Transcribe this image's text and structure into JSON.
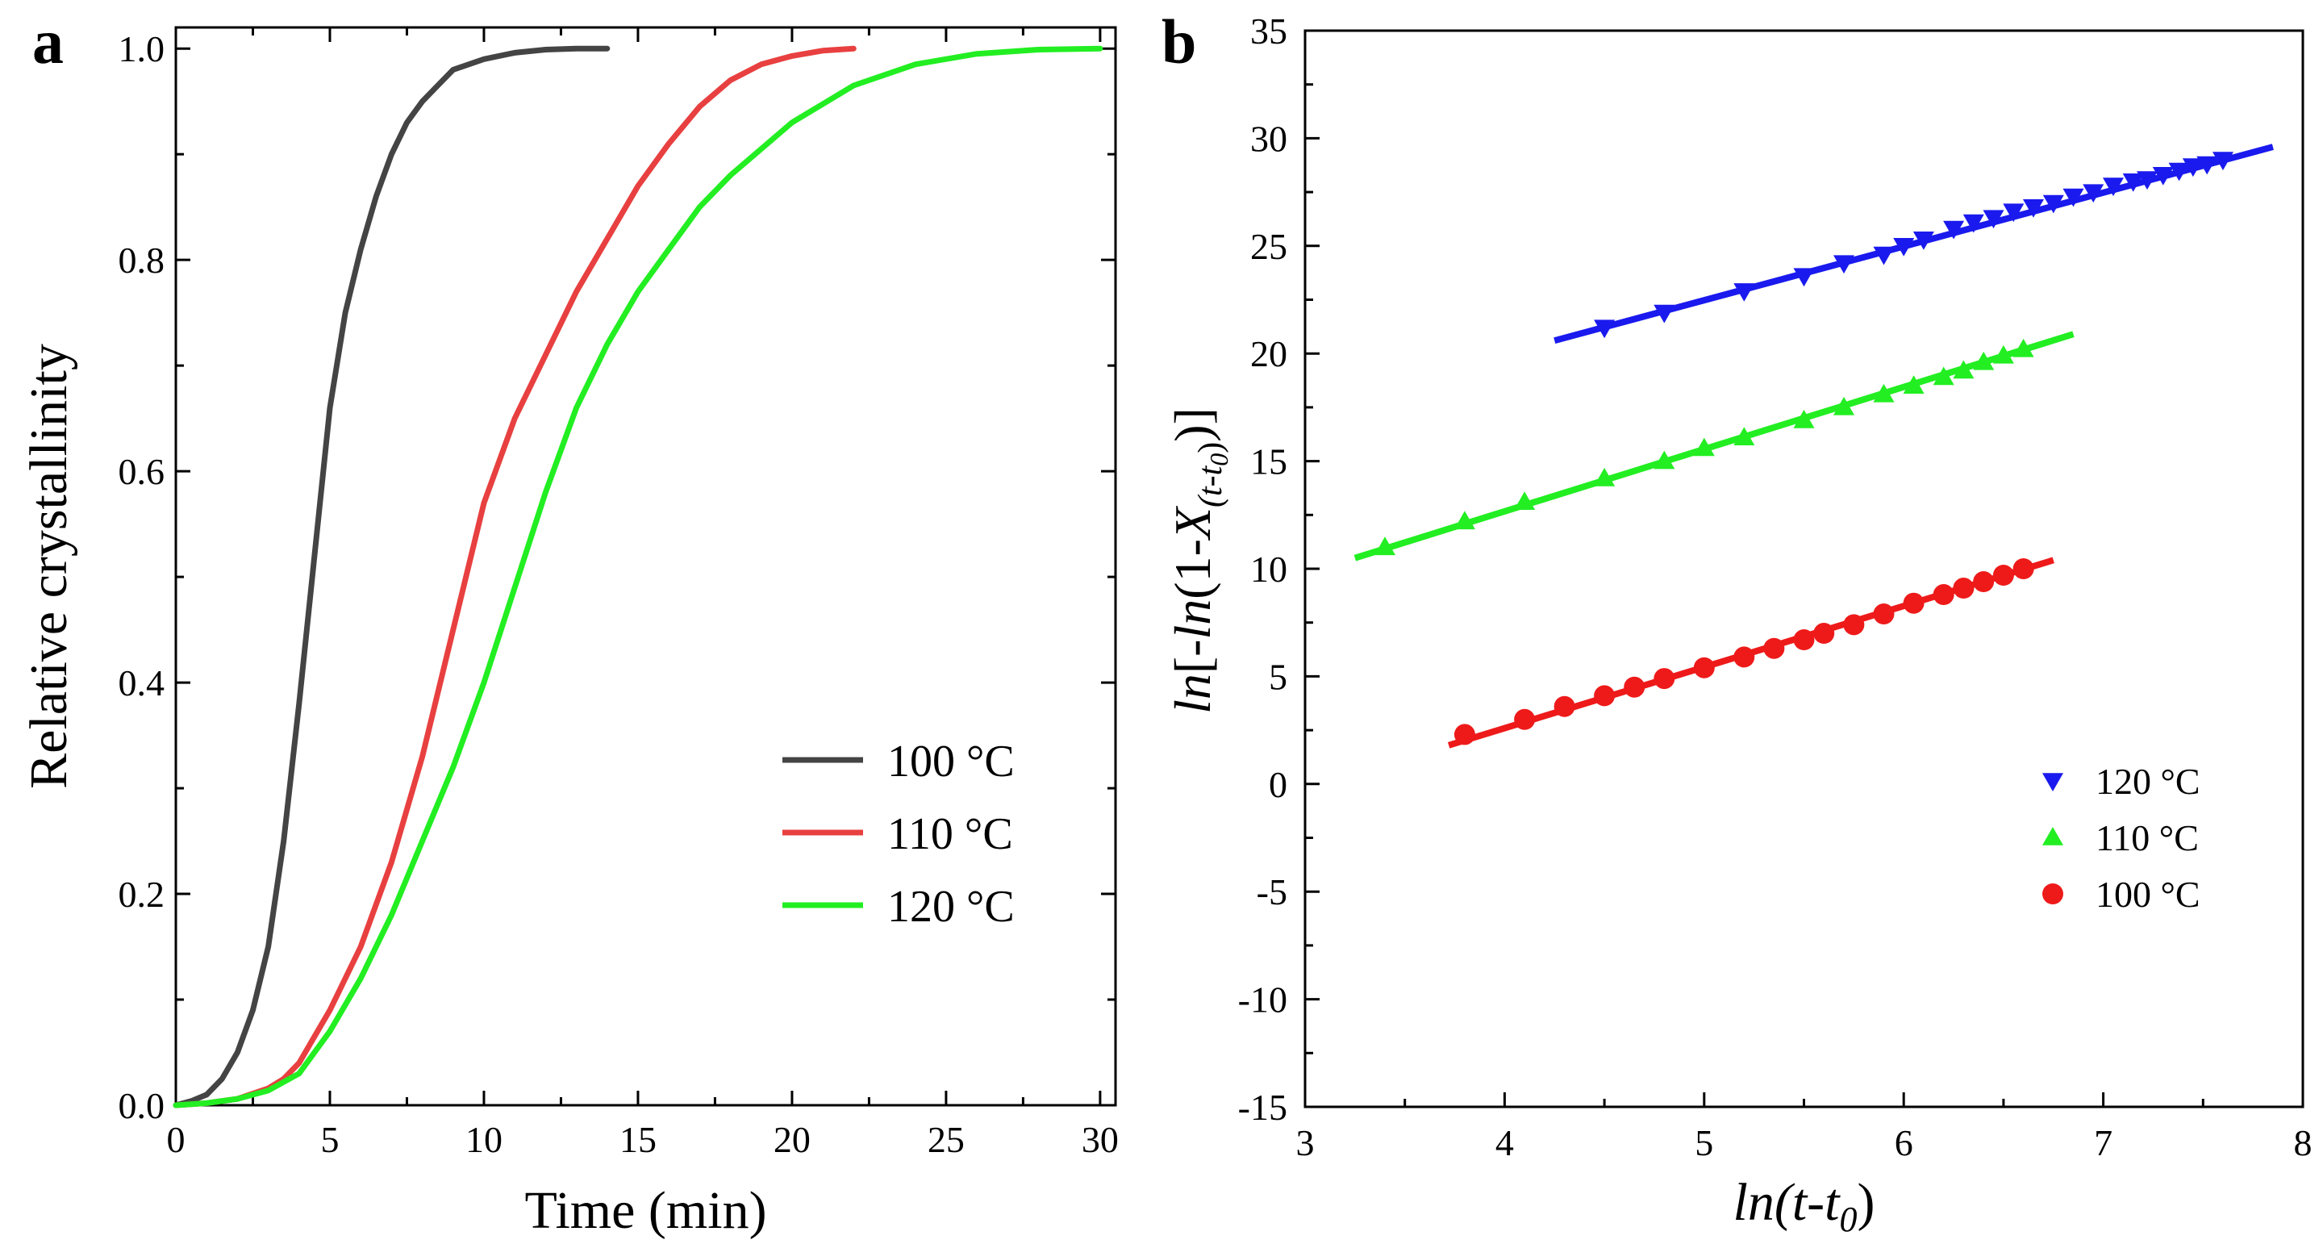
{
  "figure": {
    "panels": [
      "a",
      "b"
    ]
  },
  "chart_data": [
    {
      "panel_label": "a",
      "type": "line",
      "title": "",
      "xlabel": "Time (min)",
      "ylabel": "Relative crystallinity",
      "xlim": [
        0,
        30.5
      ],
      "ylim": [
        0,
        1.02
      ],
      "xticks": [
        0,
        5,
        10,
        15,
        20,
        25,
        30
      ],
      "yticks": [
        0.0,
        0.2,
        0.4,
        0.6,
        0.8,
        1.0
      ],
      "xtick_labels": [
        "0",
        "5",
        "10",
        "15",
        "20",
        "25",
        "30"
      ],
      "ytick_labels": [
        "0.0",
        "0.2",
        "0.4",
        "0.6",
        "0.8",
        "1.0"
      ],
      "legend_position": "lower-right",
      "grid": false,
      "series": [
        {
          "name": "100 °C",
          "color": "#444444",
          "x": [
            0,
            0.5,
            1,
            1.5,
            2,
            2.5,
            3,
            3.5,
            4,
            4.5,
            5,
            5.5,
            6,
            6.5,
            7,
            7.5,
            8,
            8.5,
            9,
            10,
            11,
            12,
            13,
            14
          ],
          "y": [
            0.0,
            0.004,
            0.01,
            0.025,
            0.05,
            0.09,
            0.15,
            0.25,
            0.38,
            0.52,
            0.66,
            0.75,
            0.81,
            0.86,
            0.9,
            0.93,
            0.95,
            0.965,
            0.98,
            0.99,
            0.996,
            0.999,
            1.0,
            1.0
          ]
        },
        {
          "name": "110 °C",
          "color": "#e84040",
          "x": [
            0,
            1,
            2,
            3,
            3.5,
            4,
            5,
            6,
            7,
            8,
            9,
            10,
            11,
            12,
            13,
            14,
            15,
            16,
            17,
            18,
            19,
            20,
            21,
            22
          ],
          "y": [
            0.0,
            0.002,
            0.006,
            0.016,
            0.025,
            0.04,
            0.09,
            0.15,
            0.23,
            0.33,
            0.45,
            0.57,
            0.65,
            0.71,
            0.77,
            0.82,
            0.87,
            0.91,
            0.945,
            0.97,
            0.985,
            0.993,
            0.998,
            1.0
          ]
        },
        {
          "name": "120 °C",
          "color": "#22ee22",
          "x": [
            0,
            1,
            2,
            3,
            4,
            5,
            6,
            7,
            8,
            9,
            10,
            11,
            12,
            13,
            14,
            15,
            16,
            17,
            18,
            19,
            20,
            22,
            24,
            26,
            28,
            30
          ],
          "y": [
            0.0,
            0.002,
            0.006,
            0.014,
            0.03,
            0.07,
            0.12,
            0.18,
            0.25,
            0.32,
            0.4,
            0.49,
            0.58,
            0.66,
            0.72,
            0.77,
            0.81,
            0.85,
            0.88,
            0.905,
            0.93,
            0.965,
            0.985,
            0.995,
            0.999,
            1.0
          ]
        }
      ]
    },
    {
      "panel_label": "b",
      "type": "scatter",
      "title": "",
      "xlabel_parts": [
        "ln",
        "(t-t",
        "0",
        ")"
      ],
      "ylabel_parts": [
        "ln",
        "[-",
        "ln",
        "(1-",
        "X",
        "(t-t",
        "0",
        ")",
        ")]"
      ],
      "xlim": [
        3,
        8
      ],
      "ylim": [
        -15,
        35
      ],
      "xticks": [
        3,
        4,
        5,
        6,
        7,
        8
      ],
      "yticks": [
        -15,
        -10,
        -5,
        0,
        5,
        10,
        15,
        20,
        25,
        30,
        35
      ],
      "xtick_labels": [
        "3",
        "4",
        "5",
        "6",
        "7",
        "8"
      ],
      "ytick_labels": [
        "-15",
        "-10",
        "-5",
        "0",
        "5",
        "10",
        "15",
        "20",
        "25",
        "30",
        "35"
      ],
      "legend_position": "lower-right",
      "grid": false,
      "series": [
        {
          "name": "120 °C",
          "color": "#1a1aee",
          "marker": "triangle-down",
          "fit_line": {
            "x": [
              4.25,
              7.85
            ],
            "y": [
              20.6,
              29.6
            ]
          },
          "x": [
            4.5,
            4.8,
            5.2,
            5.5,
            5.7,
            5.9,
            6.0,
            6.1,
            6.25,
            6.35,
            6.45,
            6.55,
            6.65,
            6.75,
            6.85,
            6.95,
            7.05,
            7.15,
            7.22,
            7.3,
            7.38,
            7.45,
            7.52,
            7.6
          ],
          "y": [
            21.2,
            21.9,
            22.9,
            23.6,
            24.2,
            24.6,
            25.0,
            25.3,
            25.8,
            26.1,
            26.3,
            26.6,
            26.8,
            27.0,
            27.3,
            27.5,
            27.8,
            28.0,
            28.1,
            28.3,
            28.5,
            28.7,
            28.8,
            29.0
          ]
        },
        {
          "name": "110 °C",
          "color": "#22ee22",
          "marker": "triangle-up",
          "fit_line": {
            "x": [
              3.25,
              6.85
            ],
            "y": [
              10.5,
              20.9
            ]
          },
          "x": [
            3.4,
            3.8,
            4.1,
            4.5,
            4.8,
            5.0,
            5.2,
            5.5,
            5.7,
            5.9,
            6.05,
            6.2,
            6.3,
            6.4,
            6.5,
            6.6
          ],
          "y": [
            11.0,
            12.2,
            13.1,
            14.2,
            15.0,
            15.6,
            16.1,
            16.9,
            17.5,
            18.1,
            18.5,
            18.9,
            19.2,
            19.6,
            19.9,
            20.2
          ]
        },
        {
          "name": "100 °C",
          "color": "#ee1a1a",
          "marker": "circle",
          "fit_line": {
            "x": [
              3.72,
              6.75
            ],
            "y": [
              1.8,
              10.4
            ]
          },
          "x": [
            3.8,
            4.1,
            4.3,
            4.5,
            4.65,
            4.8,
            5.0,
            5.2,
            5.35,
            5.5,
            5.6,
            5.75,
            5.9,
            6.05,
            6.2,
            6.3,
            6.4,
            6.5,
            6.6
          ],
          "y": [
            2.3,
            3.0,
            3.6,
            4.1,
            4.5,
            4.9,
            5.4,
            5.9,
            6.3,
            6.7,
            7.0,
            7.4,
            7.9,
            8.4,
            8.8,
            9.1,
            9.4,
            9.7,
            10.0
          ]
        }
      ]
    }
  ]
}
